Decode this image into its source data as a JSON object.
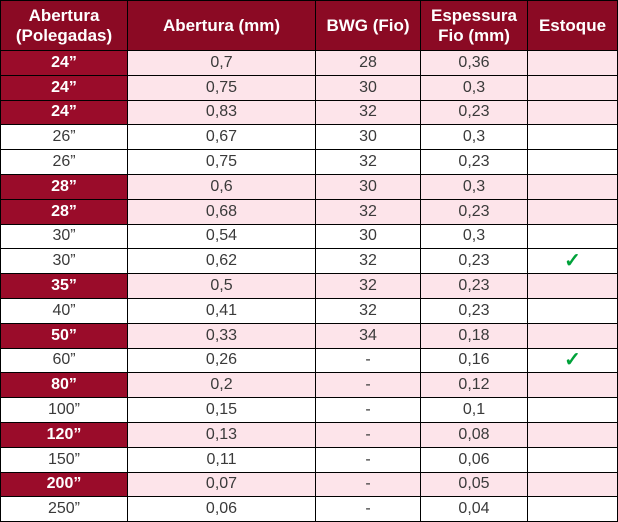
{
  "table": {
    "headers": {
      "aperture_inches": "Abertura (Polegadas)",
      "aperture_mm": "Abertura (mm)",
      "bwg": "BWG (Fio)",
      "wire_thickness": "Espessura Fio (mm)",
      "stock": "Estoque"
    },
    "check_symbol": "✓",
    "rows": [
      {
        "size": "24”",
        "aperture_mm": "0,7",
        "bwg": "28",
        "wire_mm": "0,36",
        "in_stock": false
      },
      {
        "size": "24”",
        "aperture_mm": "0,75",
        "bwg": "30",
        "wire_mm": "0,3",
        "in_stock": false
      },
      {
        "size": "24”",
        "aperture_mm": "0,83",
        "bwg": "32",
        "wire_mm": "0,23",
        "in_stock": false
      },
      {
        "size": "26”",
        "aperture_mm": "0,67",
        "bwg": "30",
        "wire_mm": "0,3",
        "in_stock": false
      },
      {
        "size": "26”",
        "aperture_mm": "0,75",
        "bwg": "32",
        "wire_mm": "0,23",
        "in_stock": false
      },
      {
        "size": "28”",
        "aperture_mm": "0,6",
        "bwg": "30",
        "wire_mm": "0,3",
        "in_stock": false
      },
      {
        "size": "28”",
        "aperture_mm": "0,68",
        "bwg": "32",
        "wire_mm": "0,23",
        "in_stock": false
      },
      {
        "size": "30”",
        "aperture_mm": "0,54",
        "bwg": "30",
        "wire_mm": "0,3",
        "in_stock": false
      },
      {
        "size": "30”",
        "aperture_mm": "0,62",
        "bwg": "32",
        "wire_mm": "0,23",
        "in_stock": true
      },
      {
        "size": "35”",
        "aperture_mm": "0,5",
        "bwg": "32",
        "wire_mm": "0,23",
        "in_stock": false
      },
      {
        "size": "40”",
        "aperture_mm": "0,41",
        "bwg": "32",
        "wire_mm": "0,23",
        "in_stock": false
      },
      {
        "size": "50”",
        "aperture_mm": "0,33",
        "bwg": "34",
        "wire_mm": "0,18",
        "in_stock": false
      },
      {
        "size": "60”",
        "aperture_mm": "0,26",
        "bwg": "-",
        "wire_mm": "0,16",
        "in_stock": true
      },
      {
        "size": "80”",
        "aperture_mm": "0,2",
        "bwg": "-",
        "wire_mm": "0,12",
        "in_stock": false
      },
      {
        "size": "100”",
        "aperture_mm": "0,15",
        "bwg": "-",
        "wire_mm": "0,1",
        "in_stock": false
      },
      {
        "size": "120”",
        "aperture_mm": "0,13",
        "bwg": "-",
        "wire_mm": "0,08",
        "in_stock": false
      },
      {
        "size": "150”",
        "aperture_mm": "0,11",
        "bwg": "-",
        "wire_mm": "0,06",
        "in_stock": false
      },
      {
        "size": "200”",
        "aperture_mm": "0,07",
        "bwg": "-",
        "wire_mm": "0,05",
        "in_stock": false
      },
      {
        "size": "250”",
        "aperture_mm": "0,06",
        "bwg": "-",
        "wire_mm": "0,04",
        "in_stock": false
      }
    ]
  }
}
